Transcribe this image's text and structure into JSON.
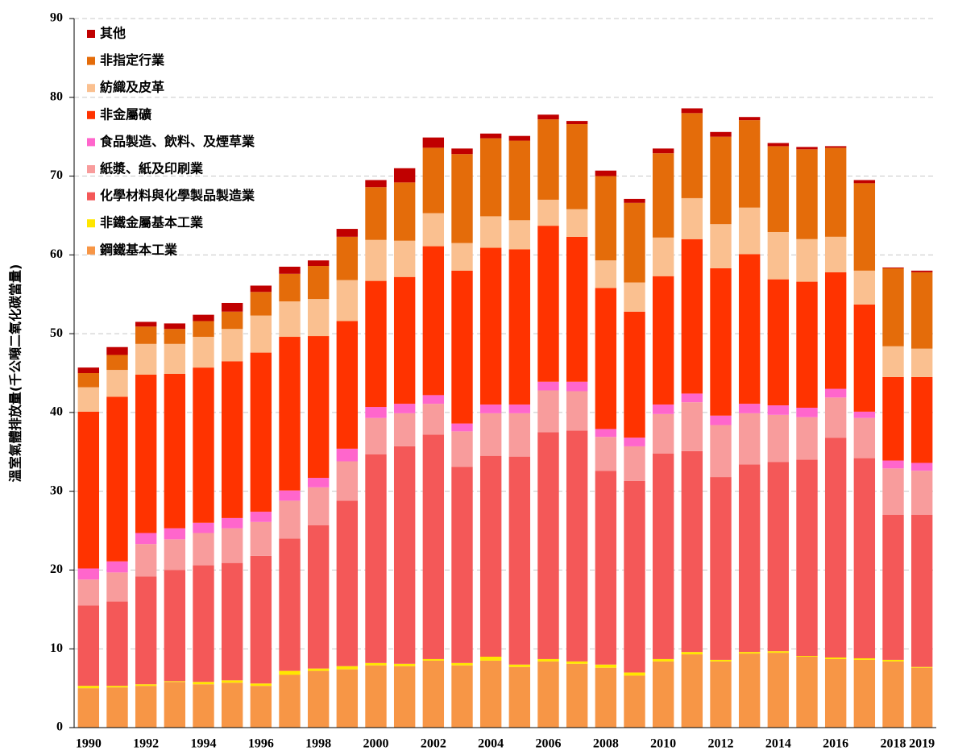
{
  "chart_data": {
    "type": "stacked_bar",
    "y_label": "溫室氣體排放量(千公噸二氧化碳當量)",
    "categories": [
      "1990",
      null,
      "1992",
      null,
      "1994",
      null,
      "1996",
      null,
      "1998",
      null,
      "2000",
      null,
      "2002",
      null,
      "2004",
      null,
      "2006",
      null,
      "2008",
      null,
      "2010",
      null,
      "2012",
      null,
      "2014",
      null,
      "2016",
      null,
      "2018",
      "2019"
    ],
    "ylim": [
      0,
      90
    ],
    "yticks": [
      0,
      10,
      20,
      30,
      40,
      50,
      60,
      70,
      80,
      90
    ],
    "grid": true,
    "legend": "upper left",
    "series": [
      {
        "name": "鋼鐵基本工業",
        "color": "#F79646",
        "values": [
          5.0,
          5.1,
          5.3,
          5.8,
          5.5,
          5.7,
          5.3,
          6.7,
          7.2,
          7.4,
          7.9,
          7.8,
          8.5,
          7.9,
          8.5,
          7.7,
          8.4,
          8.1,
          7.6,
          6.6,
          8.4,
          9.3,
          8.4,
          9.4,
          9.5,
          9.0,
          8.7,
          8.6,
          8.4,
          7.6
        ]
      },
      {
        "name": "非鐵金屬基本工業",
        "color": "#FFE600",
        "values": [
          0.3,
          0.2,
          0.2,
          0.1,
          0.3,
          0.3,
          0.3,
          0.5,
          0.3,
          0.4,
          0.3,
          0.3,
          0.2,
          0.3,
          0.5,
          0.3,
          0.3,
          0.3,
          0.4,
          0.4,
          0.3,
          0.3,
          0.2,
          0.2,
          0.2,
          0.1,
          0.2,
          0.2,
          0.2,
          0.1
        ]
      },
      {
        "name": "化學材料與化學製品製造業",
        "color": "#F45858",
        "values": [
          10.2,
          10.7,
          13.7,
          14.1,
          14.8,
          14.9,
          16.2,
          16.8,
          18.2,
          21.0,
          26.5,
          27.6,
          28.5,
          24.9,
          25.5,
          26.4,
          28.8,
          29.3,
          24.6,
          24.3,
          26.1,
          25.5,
          23.2,
          23.8,
          24.0,
          24.9,
          27.9,
          25.4,
          18.4,
          19.3
        ]
      },
      {
        "name": "紙漿、紙及印刷業",
        "color": "#F89C9C",
        "values": [
          3.3,
          3.7,
          4.1,
          3.9,
          4.1,
          4.4,
          4.3,
          4.8,
          4.8,
          5.0,
          4.6,
          4.2,
          3.9,
          4.5,
          5.4,
          5.5,
          5.3,
          5.0,
          4.3,
          4.4,
          5.0,
          6.2,
          6.6,
          6.5,
          6.0,
          5.4,
          5.1,
          5.1,
          5.9,
          5.6
        ]
      },
      {
        "name": "食品製造、飲料、及煙草業",
        "color": "#FF66CC",
        "values": [
          1.4,
          1.4,
          1.4,
          1.4,
          1.3,
          1.3,
          1.3,
          1.3,
          1.2,
          1.6,
          1.4,
          1.2,
          1.1,
          1.0,
          1.1,
          1.1,
          1.1,
          1.2,
          1.0,
          1.1,
          1.2,
          1.1,
          1.2,
          1.2,
          1.2,
          1.2,
          1.1,
          0.8,
          1.0,
          1.0
        ]
      },
      {
        "name": "非金屬礦",
        "color": "#FF3300",
        "values": [
          19.9,
          20.9,
          20.1,
          19.6,
          19.7,
          19.9,
          20.2,
          19.5,
          18.0,
          16.2,
          16.0,
          16.1,
          18.9,
          19.4,
          19.9,
          19.7,
          19.8,
          18.4,
          17.9,
          16.0,
          16.3,
          19.6,
          18.7,
          19.0,
          16.0,
          16.0,
          14.8,
          13.6,
          10.6,
          10.9
        ]
      },
      {
        "name": "紡織及皮革",
        "color": "#FAC090",
        "values": [
          3.1,
          3.4,
          3.9,
          3.8,
          3.9,
          4.1,
          4.7,
          4.5,
          4.7,
          5.2,
          5.2,
          4.6,
          4.2,
          3.5,
          4.0,
          3.7,
          3.3,
          3.5,
          3.5,
          3.7,
          4.9,
          5.2,
          5.6,
          5.9,
          6.0,
          5.4,
          4.5,
          4.3,
          3.9,
          3.6
        ]
      },
      {
        "name": "非指定行業",
        "color": "#E46C0A",
        "values": [
          1.8,
          1.9,
          2.2,
          1.9,
          2.0,
          2.2,
          3.0,
          3.5,
          4.2,
          5.5,
          6.7,
          7.4,
          8.3,
          11.3,
          9.9,
          10.1,
          10.2,
          10.8,
          10.7,
          10.1,
          10.7,
          10.8,
          11.1,
          11.1,
          10.9,
          11.4,
          11.3,
          11.1,
          9.9,
          9.7
        ]
      },
      {
        "name": "其他",
        "color": "#C00000",
        "values": [
          0.7,
          1.0,
          0.6,
          0.7,
          0.8,
          1.1,
          0.8,
          0.9,
          0.7,
          1.0,
          0.9,
          1.8,
          1.3,
          0.7,
          0.6,
          0.6,
          0.6,
          0.4,
          0.7,
          0.5,
          0.6,
          0.6,
          0.6,
          0.4,
          0.4,
          0.3,
          0.2,
          0.4,
          0.1,
          0.2
        ]
      }
    ]
  }
}
